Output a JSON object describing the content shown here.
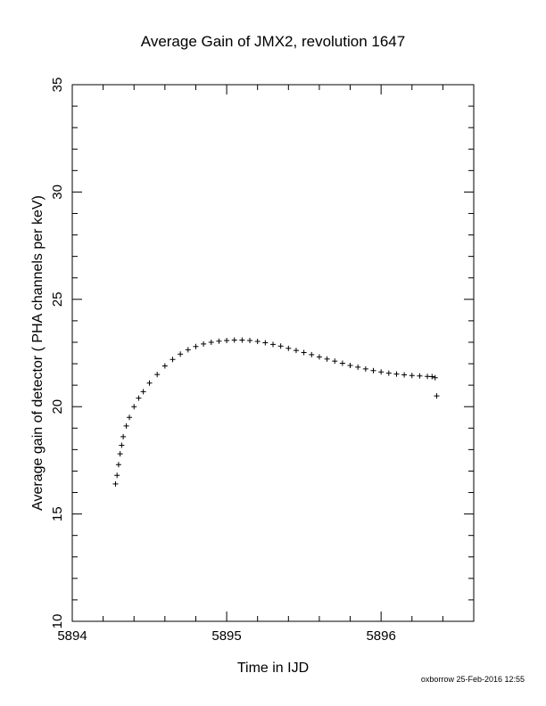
{
  "chart_data": {
    "type": "scatter",
    "title": "Average Gain of JMX2, revolution 1647",
    "xlabel": "Time in IJD",
    "ylabel": "Average gain of detector ( PHA channels per keV)",
    "xlim": [
      5894,
      5896.6
    ],
    "ylim": [
      10,
      35
    ],
    "xticks": [
      "5894",
      "5895",
      "5896"
    ],
    "yticks": [
      "10",
      "15",
      "20",
      "25",
      "30",
      "35"
    ],
    "marker": "+",
    "grid": false,
    "series": [
      {
        "x": [
          5894.28,
          5894.29,
          5894.3,
          5894.31,
          5894.32,
          5894.33,
          5894.35,
          5894.37,
          5894.4,
          5894.43,
          5894.46,
          5894.5,
          5894.55,
          5894.6,
          5894.65,
          5894.7,
          5894.75,
          5894.8,
          5894.85,
          5894.9,
          5894.95,
          5895.0,
          5895.05,
          5895.1,
          5895.15,
          5895.2,
          5895.25,
          5895.3,
          5895.35,
          5895.4,
          5895.45,
          5895.5,
          5895.55,
          5895.6,
          5895.65,
          5895.7,
          5895.75,
          5895.8,
          5895.85,
          5895.9,
          5895.95,
          5896.0,
          5896.05,
          5896.1,
          5896.15,
          5896.2,
          5896.25,
          5896.3,
          5896.33,
          5896.35,
          5896.36
        ],
        "y": [
          16.4,
          16.8,
          17.3,
          17.8,
          18.2,
          18.6,
          19.1,
          19.5,
          20.0,
          20.4,
          20.7,
          21.1,
          21.5,
          21.9,
          22.2,
          22.45,
          22.65,
          22.8,
          22.92,
          23.0,
          23.05,
          23.08,
          23.1,
          23.1,
          23.08,
          23.04,
          22.98,
          22.9,
          22.82,
          22.72,
          22.62,
          22.52,
          22.42,
          22.32,
          22.22,
          22.12,
          22.02,
          21.92,
          21.84,
          21.76,
          21.68,
          21.62,
          21.56,
          21.52,
          21.48,
          21.45,
          21.43,
          21.41,
          21.4,
          21.35,
          20.5
        ]
      }
    ]
  },
  "footer": {
    "credit": "oxborrow 25-Feb-2016 12:55"
  }
}
